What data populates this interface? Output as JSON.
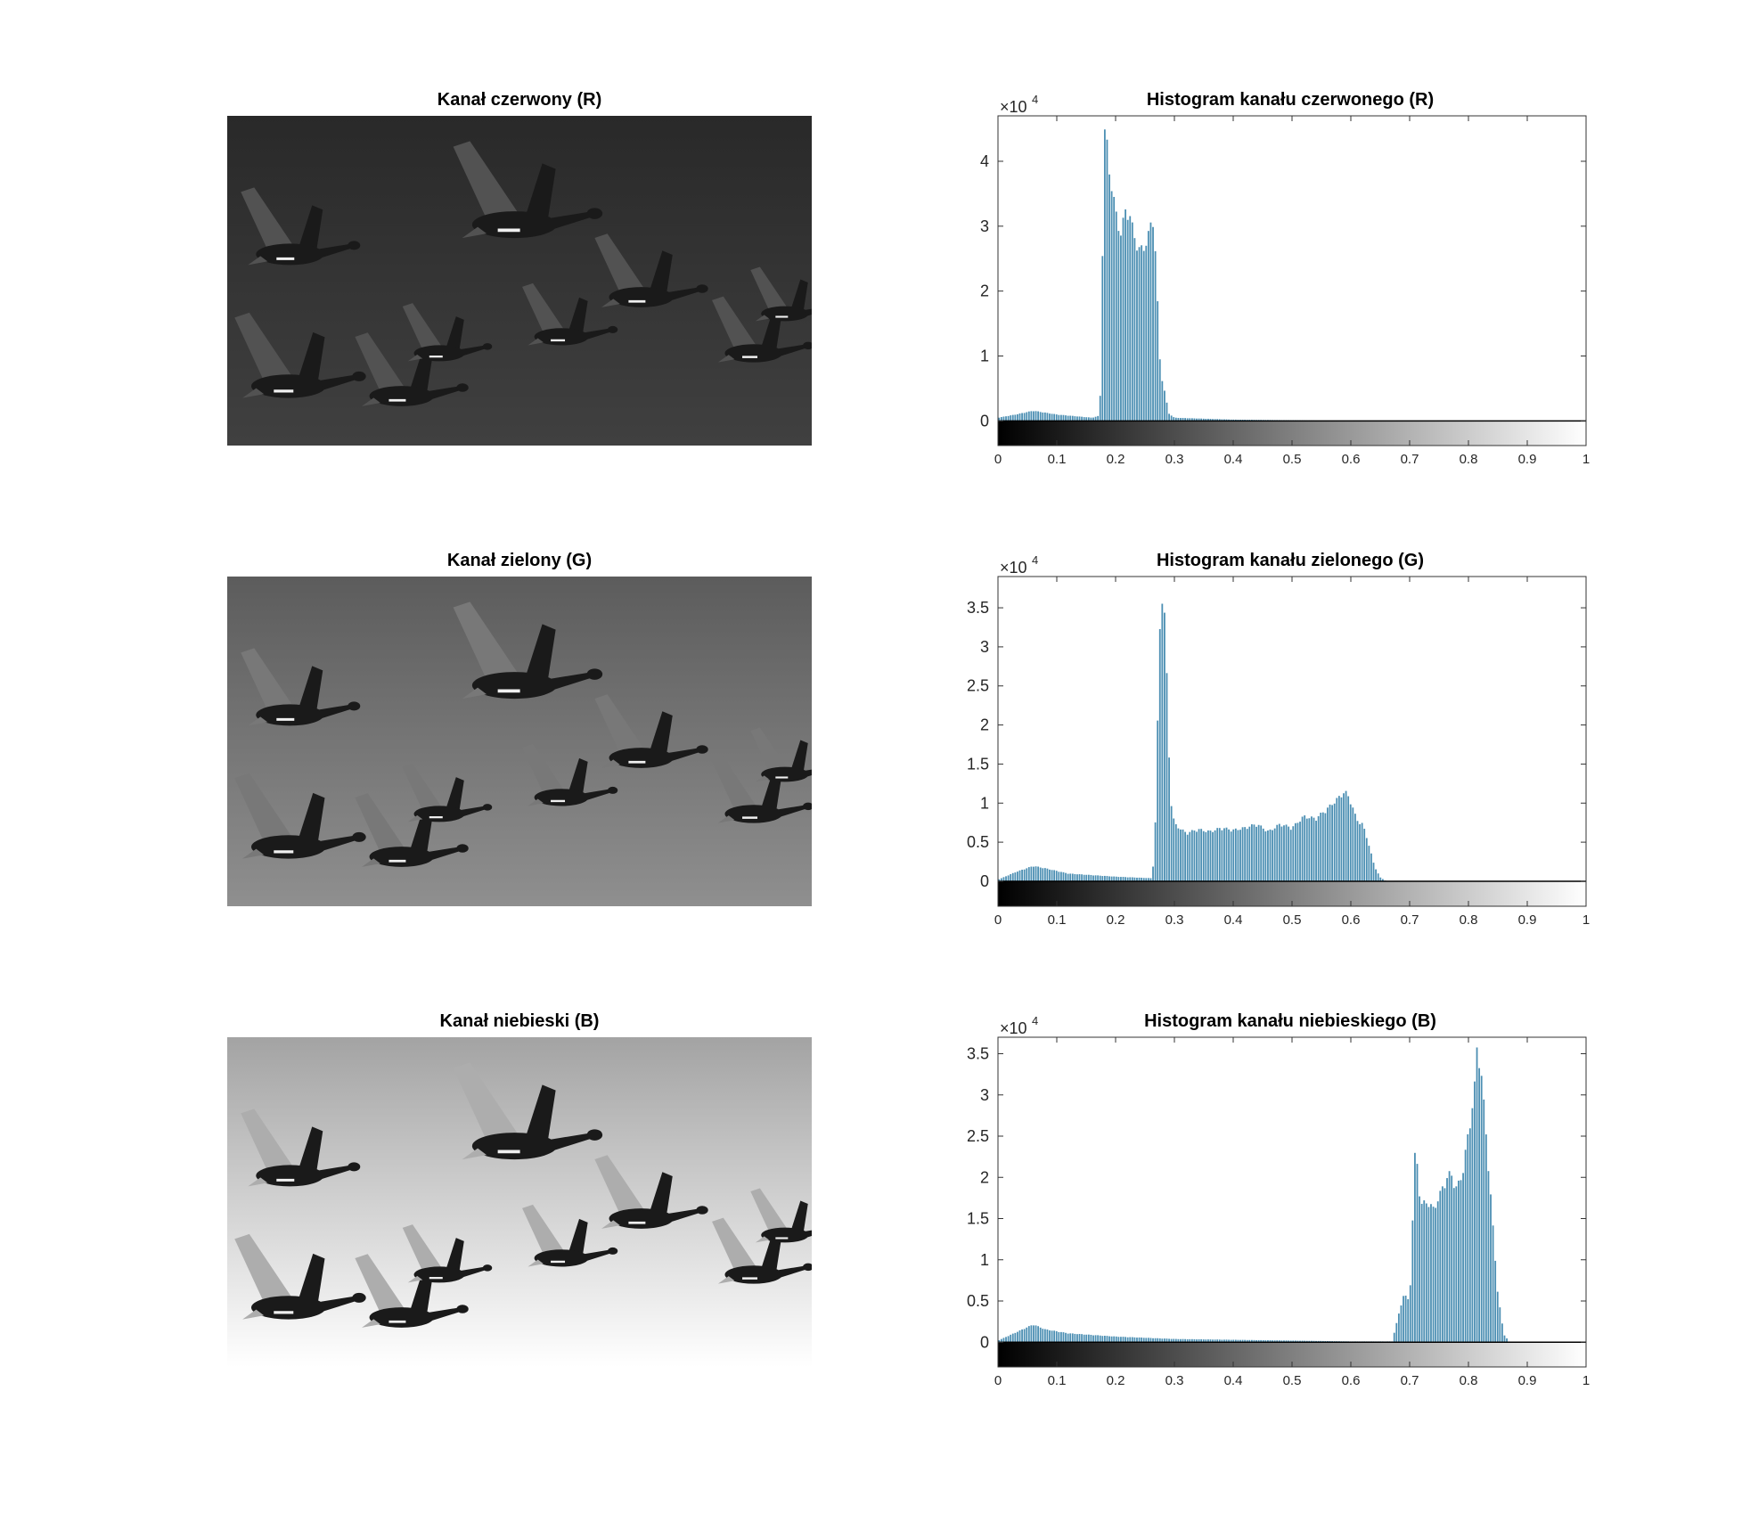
{
  "chart_data": [
    {
      "type": "image",
      "title": "Kanał czerwony (R)",
      "channel": "R",
      "background_level": 0.2
    },
    {
      "type": "bar",
      "title": "Histogram kanału czerwonego (R)",
      "exponent_label": "×10",
      "exponent": "4",
      "xlim": [
        0,
        1
      ],
      "ylim": [
        -0.38,
        4.7
      ],
      "xticks": [
        "0",
        "0.1",
        "0.2",
        "0.3",
        "0.4",
        "0.5",
        "0.6",
        "0.7",
        "0.8",
        "0.9",
        "1"
      ],
      "yticks": [
        "0",
        "1",
        "2",
        "3",
        "4"
      ],
      "ytick_values": [
        0,
        1,
        2,
        3,
        4
      ],
      "bar_color": "#4c8fb3",
      "colorbar": "gray",
      "profile": [
        [
          0,
          0.05
        ],
        [
          0.03,
          0.1
        ],
        [
          0.06,
          0.16
        ],
        [
          0.1,
          0.1
        ],
        [
          0.16,
          0.05
        ],
        [
          0.172,
          0.08
        ],
        [
          0.175,
          0.6
        ],
        [
          0.178,
          2.9
        ],
        [
          0.182,
          4.7
        ],
        [
          0.186,
          4.3
        ],
        [
          0.19,
          3.9
        ],
        [
          0.195,
          3.6
        ],
        [
          0.2,
          3.3
        ],
        [
          0.205,
          3.1
        ],
        [
          0.21,
          2.9
        ],
        [
          0.215,
          3.3
        ],
        [
          0.22,
          3.35
        ],
        [
          0.225,
          3.2
        ],
        [
          0.23,
          3.0
        ],
        [
          0.235,
          2.8
        ],
        [
          0.24,
          2.7
        ],
        [
          0.245,
          2.72
        ],
        [
          0.25,
          2.75
        ],
        [
          0.255,
          2.9
        ],
        [
          0.26,
          3.1
        ],
        [
          0.265,
          3.2
        ],
        [
          0.27,
          2.2
        ],
        [
          0.275,
          1.0
        ],
        [
          0.28,
          0.6
        ],
        [
          0.285,
          0.4
        ],
        [
          0.29,
          0.12
        ],
        [
          0.3,
          0.05
        ],
        [
          0.4,
          0.02
        ],
        [
          0.5,
          0.01
        ],
        [
          0.58,
          0.0
        ],
        [
          1.0,
          0.0
        ]
      ]
    },
    {
      "type": "image",
      "title": "Kanał zielony (G)",
      "channel": "G",
      "background_level": 0.45
    },
    {
      "type": "bar",
      "title": "Histogram kanału zielonego (G)",
      "exponent_label": "×10",
      "exponent": "4",
      "xlim": [
        0,
        1
      ],
      "ylim": [
        -0.32,
        3.9
      ],
      "xticks": [
        "0",
        "0.1",
        "0.2",
        "0.3",
        "0.4",
        "0.5",
        "0.6",
        "0.7",
        "0.8",
        "0.9",
        "1"
      ],
      "yticks": [
        "0",
        "0.5",
        "1",
        "1.5",
        "2",
        "2.5",
        "3",
        "3.5"
      ],
      "ytick_values": [
        0,
        0.5,
        1,
        1.5,
        2,
        2.5,
        3,
        3.5
      ],
      "bar_color": "#4c8fb3",
      "colorbar": "gray",
      "profile": [
        [
          0,
          0.02
        ],
        [
          0.03,
          0.12
        ],
        [
          0.06,
          0.2
        ],
        [
          0.08,
          0.17
        ],
        [
          0.12,
          0.1
        ],
        [
          0.2,
          0.06
        ],
        [
          0.26,
          0.04
        ],
        [
          0.266,
          0.3
        ],
        [
          0.27,
          1.5
        ],
        [
          0.274,
          3.0
        ],
        [
          0.278,
          3.85
        ],
        [
          0.282,
          3.7
        ],
        [
          0.286,
          3.0
        ],
        [
          0.29,
          1.8
        ],
        [
          0.295,
          1.0
        ],
        [
          0.3,
          0.75
        ],
        [
          0.32,
          0.63
        ],
        [
          0.34,
          0.68
        ],
        [
          0.36,
          0.65
        ],
        [
          0.38,
          0.7
        ],
        [
          0.4,
          0.67
        ],
        [
          0.42,
          0.7
        ],
        [
          0.44,
          0.75
        ],
        [
          0.46,
          0.65
        ],
        [
          0.48,
          0.75
        ],
        [
          0.5,
          0.7
        ],
        [
          0.52,
          0.85
        ],
        [
          0.54,
          0.82
        ],
        [
          0.56,
          0.95
        ],
        [
          0.58,
          1.1
        ],
        [
          0.59,
          1.18
        ],
        [
          0.6,
          1.05
        ],
        [
          0.61,
          0.8
        ],
        [
          0.62,
          0.75
        ],
        [
          0.63,
          0.5
        ],
        [
          0.64,
          0.2
        ],
        [
          0.65,
          0.05
        ],
        [
          0.66,
          0.0
        ],
        [
          1.0,
          0.0
        ]
      ]
    },
    {
      "type": "image",
      "title": "Kanał niebieski (B)",
      "channel": "B",
      "background_level": 0.8
    },
    {
      "type": "bar",
      "title": "Histogram kanału niebieskiego (B)",
      "exponent_label": "×10",
      "exponent": "4",
      "xlim": [
        0,
        1
      ],
      "ylim": [
        -0.3,
        3.7
      ],
      "xticks": [
        "0",
        "0.1",
        "0.2",
        "0.3",
        "0.4",
        "0.5",
        "0.6",
        "0.7",
        "0.8",
        "0.9",
        "1"
      ],
      "yticks": [
        "0",
        "0.5",
        "1",
        "1.5",
        "2",
        "2.5",
        "3",
        "3.5"
      ],
      "ytick_values": [
        0,
        0.5,
        1,
        1.5,
        2,
        2.5,
        3,
        3.5
      ],
      "bar_color": "#4c8fb3",
      "colorbar": "gray",
      "profile": [
        [
          0,
          0.02
        ],
        [
          0.03,
          0.12
        ],
        [
          0.06,
          0.22
        ],
        [
          0.08,
          0.16
        ],
        [
          0.12,
          0.11
        ],
        [
          0.2,
          0.07
        ],
        [
          0.3,
          0.04
        ],
        [
          0.4,
          0.03
        ],
        [
          0.5,
          0.02
        ],
        [
          0.6,
          0.01
        ],
        [
          0.67,
          0.01
        ],
        [
          0.68,
          0.3
        ],
        [
          0.69,
          0.6
        ],
        [
          0.7,
          0.5
        ],
        [
          0.705,
          1.5
        ],
        [
          0.71,
          2.5
        ],
        [
          0.715,
          2.0
        ],
        [
          0.72,
          1.7
        ],
        [
          0.73,
          1.75
        ],
        [
          0.74,
          1.65
        ],
        [
          0.75,
          1.8
        ],
        [
          0.76,
          2.0
        ],
        [
          0.77,
          2.1
        ],
        [
          0.78,
          1.9
        ],
        [
          0.79,
          2.1
        ],
        [
          0.8,
          2.6
        ],
        [
          0.81,
          3.1
        ],
        [
          0.815,
          3.7
        ],
        [
          0.82,
          3.5
        ],
        [
          0.83,
          2.6
        ],
        [
          0.84,
          1.6
        ],
        [
          0.85,
          0.6
        ],
        [
          0.86,
          0.1
        ],
        [
          0.87,
          0.0
        ],
        [
          1.0,
          0.0
        ]
      ]
    }
  ]
}
